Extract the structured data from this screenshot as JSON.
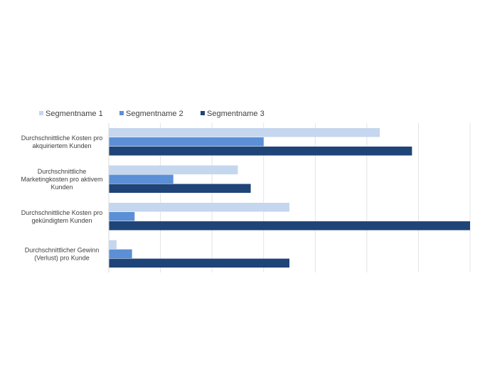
{
  "chart_data": {
    "type": "bar",
    "orientation": "horizontal",
    "title": "",
    "xlabel": "",
    "ylabel": "",
    "xlim": [
      0,
      14
    ],
    "grid": true,
    "legend_position": "top",
    "categories": [
      [
        "Durchschnittliche Kosten pro",
        "akquiriertem Kunden"
      ],
      [
        "Durchschnittliche",
        "Marketingkosten pro aktivem",
        "Kunden"
      ],
      [
        "Durchschnittliche Kosten pro",
        "gekündigtem Kunden"
      ],
      [
        "Durchschnittlicher Gewinn",
        "(Verlust) pro Kunde"
      ]
    ],
    "series": [
      {
        "name": "Segmentname 1",
        "color": "#c5d6ef",
        "values": [
          10.5,
          5.0,
          7.0,
          0.3
        ]
      },
      {
        "name": "Segmentname 2",
        "color": "#5b8fd6",
        "values": [
          6.0,
          2.5,
          1.0,
          0.9
        ]
      },
      {
        "name": "Segmentname 3",
        "color": "#1f4478",
        "values": [
          11.75,
          5.5,
          14.0,
          7.0
        ]
      }
    ]
  }
}
